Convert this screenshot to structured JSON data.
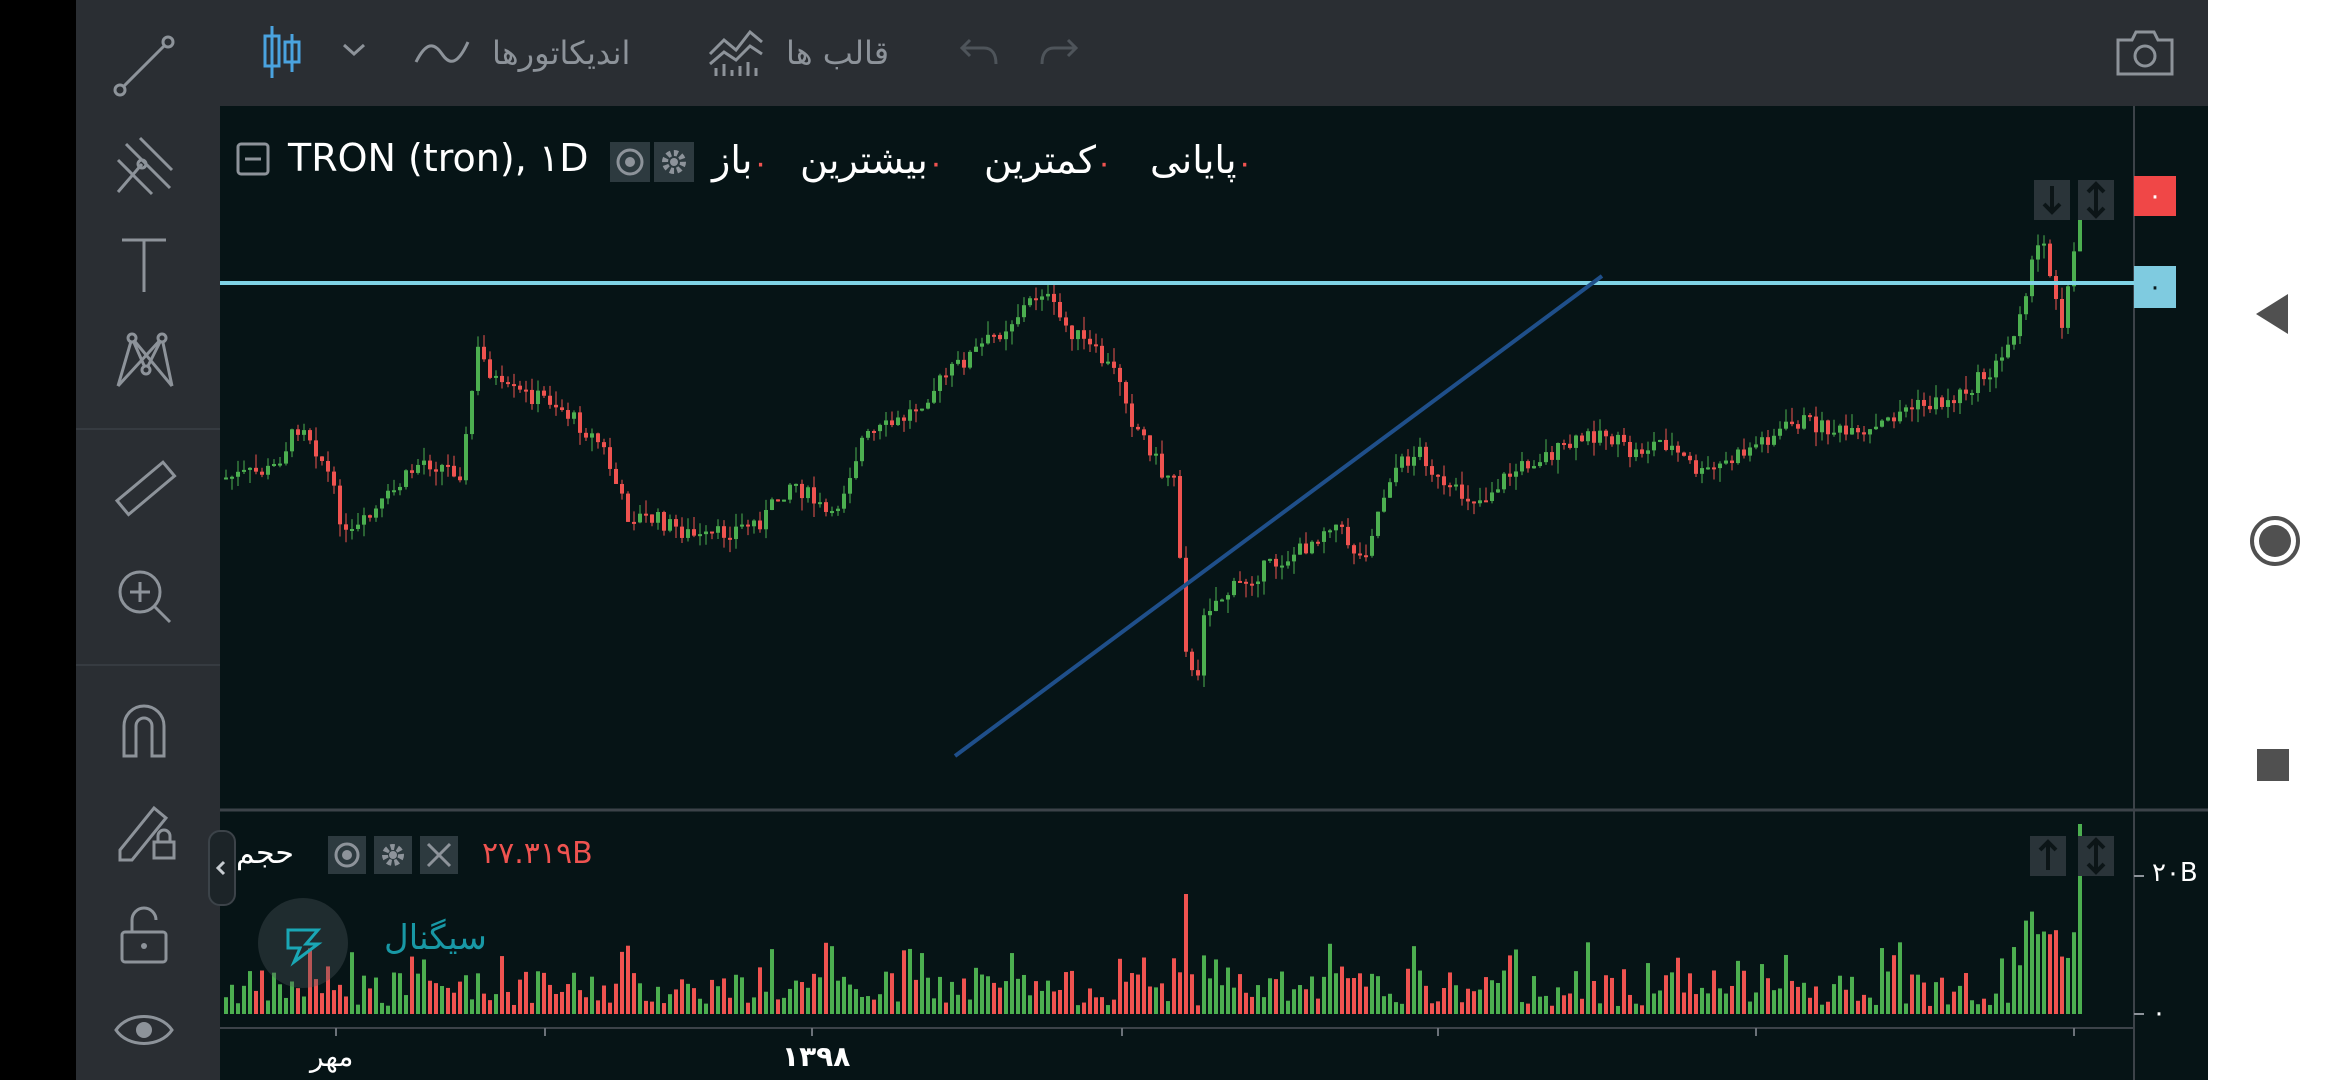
{
  "toolbar": {
    "indicators_label": "اندیکاتورها",
    "templates_label": "قالب ها"
  },
  "legend": {
    "symbol": "TRON (tron), ۱D",
    "open_label": "باز",
    "high_label": "بیشترین",
    "low_label": "کمترین",
    "close_label": "پایانی",
    "open_value": "۰",
    "high_value": "۰",
    "low_value": "۰",
    "close_value": "۰"
  },
  "price_scale": {
    "current_price_label": "۰",
    "hline_price_label": "۰"
  },
  "volume": {
    "label": "حجم",
    "value": "۲۷.۳۱۹B",
    "scale_top": "۲۰B",
    "scale_bottom": "۰"
  },
  "time_axis": {
    "labels": [
      "مهر",
      "۱۳۹۸"
    ]
  },
  "watermark": {
    "text": "سیگنال"
  },
  "colors": {
    "up": "#4caf50",
    "down": "#ef5350",
    "hline": "#7fd3e6",
    "trendline": "#1f4f8a",
    "price_badge_red": "#f04747",
    "price_badge_blue": "#7fcbe0"
  },
  "icons": {
    "sidebar": [
      "trend-line-icon",
      "pitchfork-icon",
      "text-icon",
      "pattern-icon",
      "ruler-icon",
      "zoom-in-icon",
      "magnet-icon",
      "lock-drawing-icon",
      "unlock-icon",
      "eye-icon"
    ],
    "nav": [
      "back-icon",
      "home-icon",
      "recents-icon"
    ]
  }
}
